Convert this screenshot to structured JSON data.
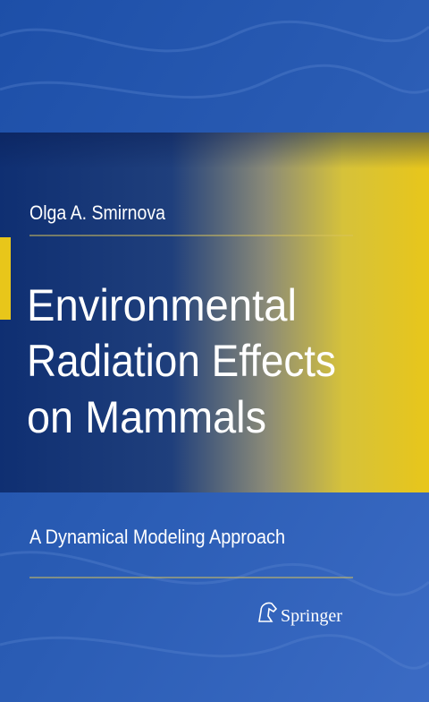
{
  "cover": {
    "author": "Olga A. Smirnova",
    "title_lines": [
      "Environmental",
      "Radiation Effects",
      "on Mammals"
    ],
    "subtitle": "A Dynamical Modeling Approach",
    "publisher": "Springer"
  }
}
